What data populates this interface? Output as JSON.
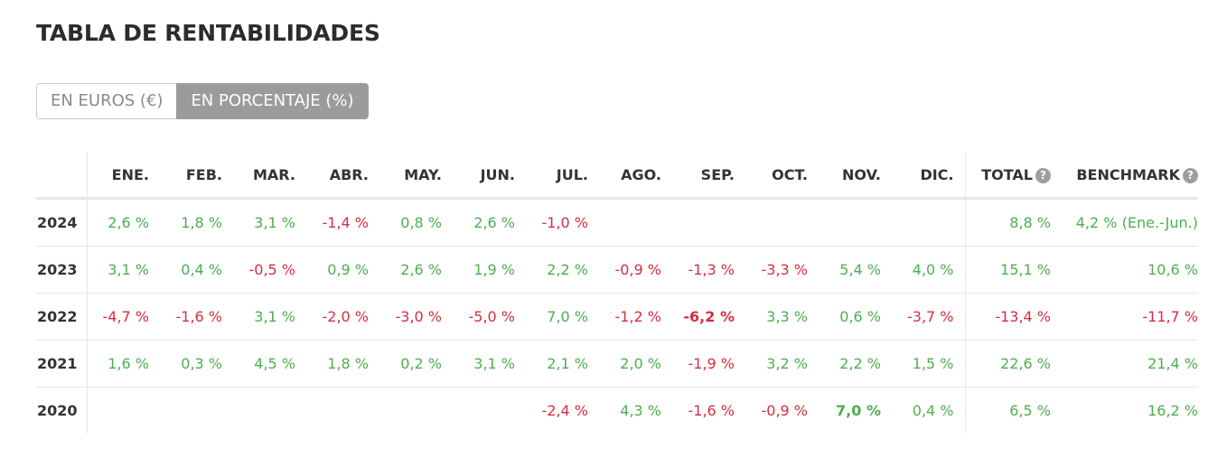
{
  "title": "TABLA DE RENTABILIDADES",
  "toggle": {
    "euros_label": "EN EUROS (€)",
    "percent_label": "EN PORCENTAJE (%)",
    "selected": "percent"
  },
  "colors": {
    "positive": "#4caf50",
    "negative": "#d32f3f",
    "toggle_active_bg": "#9b9b9b"
  },
  "table": {
    "months": [
      "ENE.",
      "FEB.",
      "MAR.",
      "ABR.",
      "MAY.",
      "JUN.",
      "JUL.",
      "AGO.",
      "SEP.",
      "OCT.",
      "NOV.",
      "DIC."
    ],
    "total_label": "TOTAL",
    "benchmark_label": "BENCHMARK",
    "help_icon_glyph": "?",
    "rows": [
      {
        "year": "2024",
        "months": [
          "2,6 %",
          "1,8 %",
          "3,1 %",
          "-1,4 %",
          "0,8 %",
          "2,6 %",
          "-1,0 %",
          "",
          "",
          "",
          "",
          ""
        ],
        "total": "8,8 %",
        "benchmark": "4,2 % (Ene.-Jun.)"
      },
      {
        "year": "2023",
        "months": [
          "3,1 %",
          "0,4 %",
          "-0,5 %",
          "0,9 %",
          "2,6 %",
          "1,9 %",
          "2,2 %",
          "-0,9 %",
          "-1,3 %",
          "-3,3 %",
          "5,4 %",
          "4,0 %"
        ],
        "total": "15,1 %",
        "benchmark": "10,6 %"
      },
      {
        "year": "2022",
        "months": [
          "-4,7 %",
          "-1,6 %",
          "3,1 %",
          "-2,0 %",
          "-3,0 %",
          "-5,0 %",
          "7,0 %",
          "-1,2 %",
          "-6,2 %",
          "3,3 %",
          "0,6 %",
          "-3,7 %"
        ],
        "total": "-13,4 %",
        "benchmark": "-11,7 %",
        "highlight_month": "SEP."
      },
      {
        "year": "2021",
        "months": [
          "1,6 %",
          "0,3 %",
          "4,5 %",
          "1,8 %",
          "0,2 %",
          "3,1 %",
          "2,1 %",
          "2,0 %",
          "-1,9 %",
          "3,2 %",
          "2,2 %",
          "1,5 %"
        ],
        "total": "22,6 %",
        "benchmark": "21,4 %"
      },
      {
        "year": "2020",
        "months": [
          "",
          "",
          "",
          "",
          "",
          "",
          "-2,4 %",
          "4,3 %",
          "-1,6 %",
          "-0,9 %",
          "7,0 %",
          "0,4 %"
        ],
        "total": "6,5 %",
        "benchmark": "16,2 %",
        "highlight_month": "NOV."
      }
    ]
  }
}
